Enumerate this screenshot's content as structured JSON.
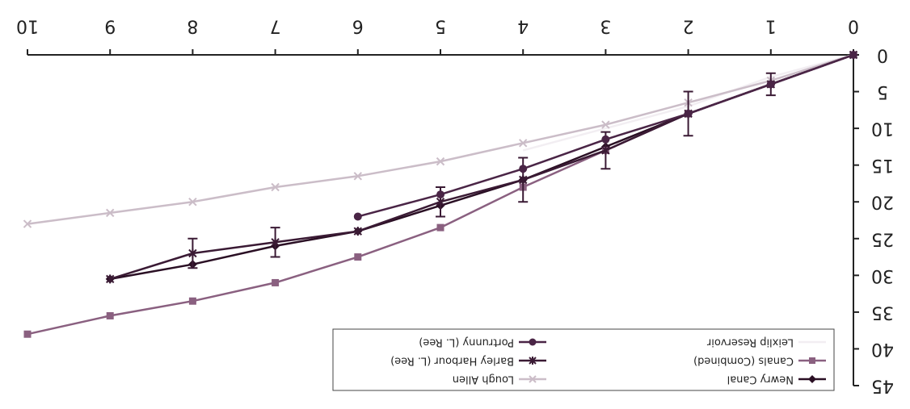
{
  "chart_data": {
    "type": "line",
    "orientation": "rotated 180 degrees",
    "x_ticks": [
      "0",
      "1",
      "2",
      "3",
      "4",
      "5",
      "6",
      "7",
      "8",
      "9",
      "10"
    ],
    "y_ticks": [
      "0",
      "5",
      "10",
      "15",
      "20",
      "25",
      "30",
      "35",
      "40",
      "45"
    ],
    "xlim": [
      0,
      10
    ],
    "ylim": [
      0,
      45
    ],
    "grid": false,
    "legend_position": "bottom",
    "legend": [
      "Newry Canal",
      "Canals (Combined)",
      "Leixlip Reservoir",
      "Lough Allen",
      "Barley Harbour (L. Ree)",
      "Portrunny (L. Ree)"
    ],
    "series": [
      {
        "name": "Newry Canal",
        "color": "#2a0f24",
        "marker": "diamond",
        "x": [
          0,
          1,
          2,
          3,
          4,
          5,
          6,
          7,
          8,
          9
        ],
        "y": [
          0,
          4,
          8,
          12.5,
          17,
          20.5,
          24,
          26,
          28.5,
          30.5
        ]
      },
      {
        "name": "Canals (Combined)",
        "color": "#8a6080",
        "marker": "square",
        "x": [
          0,
          1,
          2,
          3,
          4,
          5,
          6,
          7,
          8,
          9,
          10
        ],
        "y": [
          0,
          4,
          8,
          13,
          18,
          23.5,
          27.5,
          31,
          33.5,
          35.5,
          38
        ]
      },
      {
        "name": "Leixlip Reservoir",
        "color": "#f2eef2",
        "marker": "none",
        "x": [
          0,
          1,
          2,
          3,
          4
        ],
        "y": [
          0,
          3,
          7,
          10,
          13
        ]
      },
      {
        "name": "Lough Allen",
        "color": "#cbbdc8",
        "marker": "x",
        "x": [
          0,
          1,
          2,
          3,
          4,
          5,
          6,
          7,
          8,
          9,
          10
        ],
        "y": [
          0,
          3.5,
          6.5,
          9.5,
          12,
          14.5,
          16.5,
          18,
          20,
          21.5,
          23
        ]
      },
      {
        "name": "Barley Harbour (L. Ree)",
        "color": "#3a1a34",
        "marker": "asterisk",
        "x": [
          0,
          1,
          2,
          3,
          4,
          5,
          6,
          7,
          8,
          9
        ],
        "y": [
          0,
          4,
          8,
          13,
          17,
          20,
          24,
          25.5,
          27,
          30.5
        ],
        "error": [
          0,
          1.5,
          3,
          2.5,
          3,
          2,
          0,
          2,
          2,
          0
        ]
      },
      {
        "name": "Portrunny (L. Ree)",
        "color": "#4a2546",
        "marker": "circle",
        "x": [
          0,
          1,
          2,
          3,
          4,
          5,
          6
        ],
        "y": [
          0,
          4,
          8,
          11.5,
          15.5,
          19,
          22
        ]
      }
    ]
  }
}
